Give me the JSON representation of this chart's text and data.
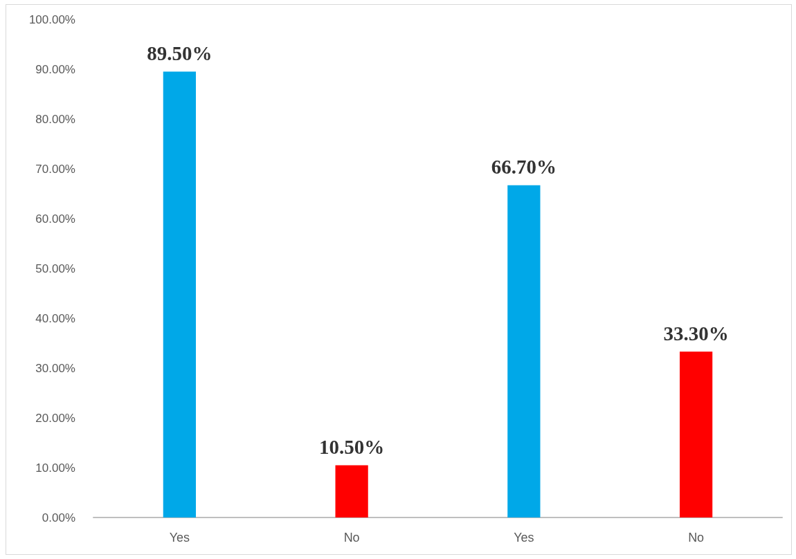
{
  "chart_data": {
    "type": "bar",
    "categories": [
      "Yes",
      "No",
      "Yes",
      "No"
    ],
    "values": [
      89.5,
      10.5,
      66.7,
      33.3
    ],
    "colors": [
      "#00a8e8",
      "#ff0000",
      "#00a8e8",
      "#ff0000"
    ],
    "value_labels": [
      "89.50%",
      "10.50%",
      "66.70%",
      "33.30%"
    ],
    "ylim": [
      0,
      100
    ],
    "yticks": [
      {
        "value": 0,
        "label": "0.00%"
      },
      {
        "value": 10,
        "label": "10.00%"
      },
      {
        "value": 20,
        "label": "20.00%"
      },
      {
        "value": 30,
        "label": "30.00%"
      },
      {
        "value": 40,
        "label": "40.00%"
      },
      {
        "value": 50,
        "label": "50.00%"
      },
      {
        "value": 60,
        "label": "60.00%"
      },
      {
        "value": 70,
        "label": "70.00%"
      },
      {
        "value": 80,
        "label": "80.00%"
      },
      {
        "value": 90,
        "label": "90.00%"
      },
      {
        "value": 100,
        "label": "100.00%"
      }
    ],
    "grid": false
  }
}
